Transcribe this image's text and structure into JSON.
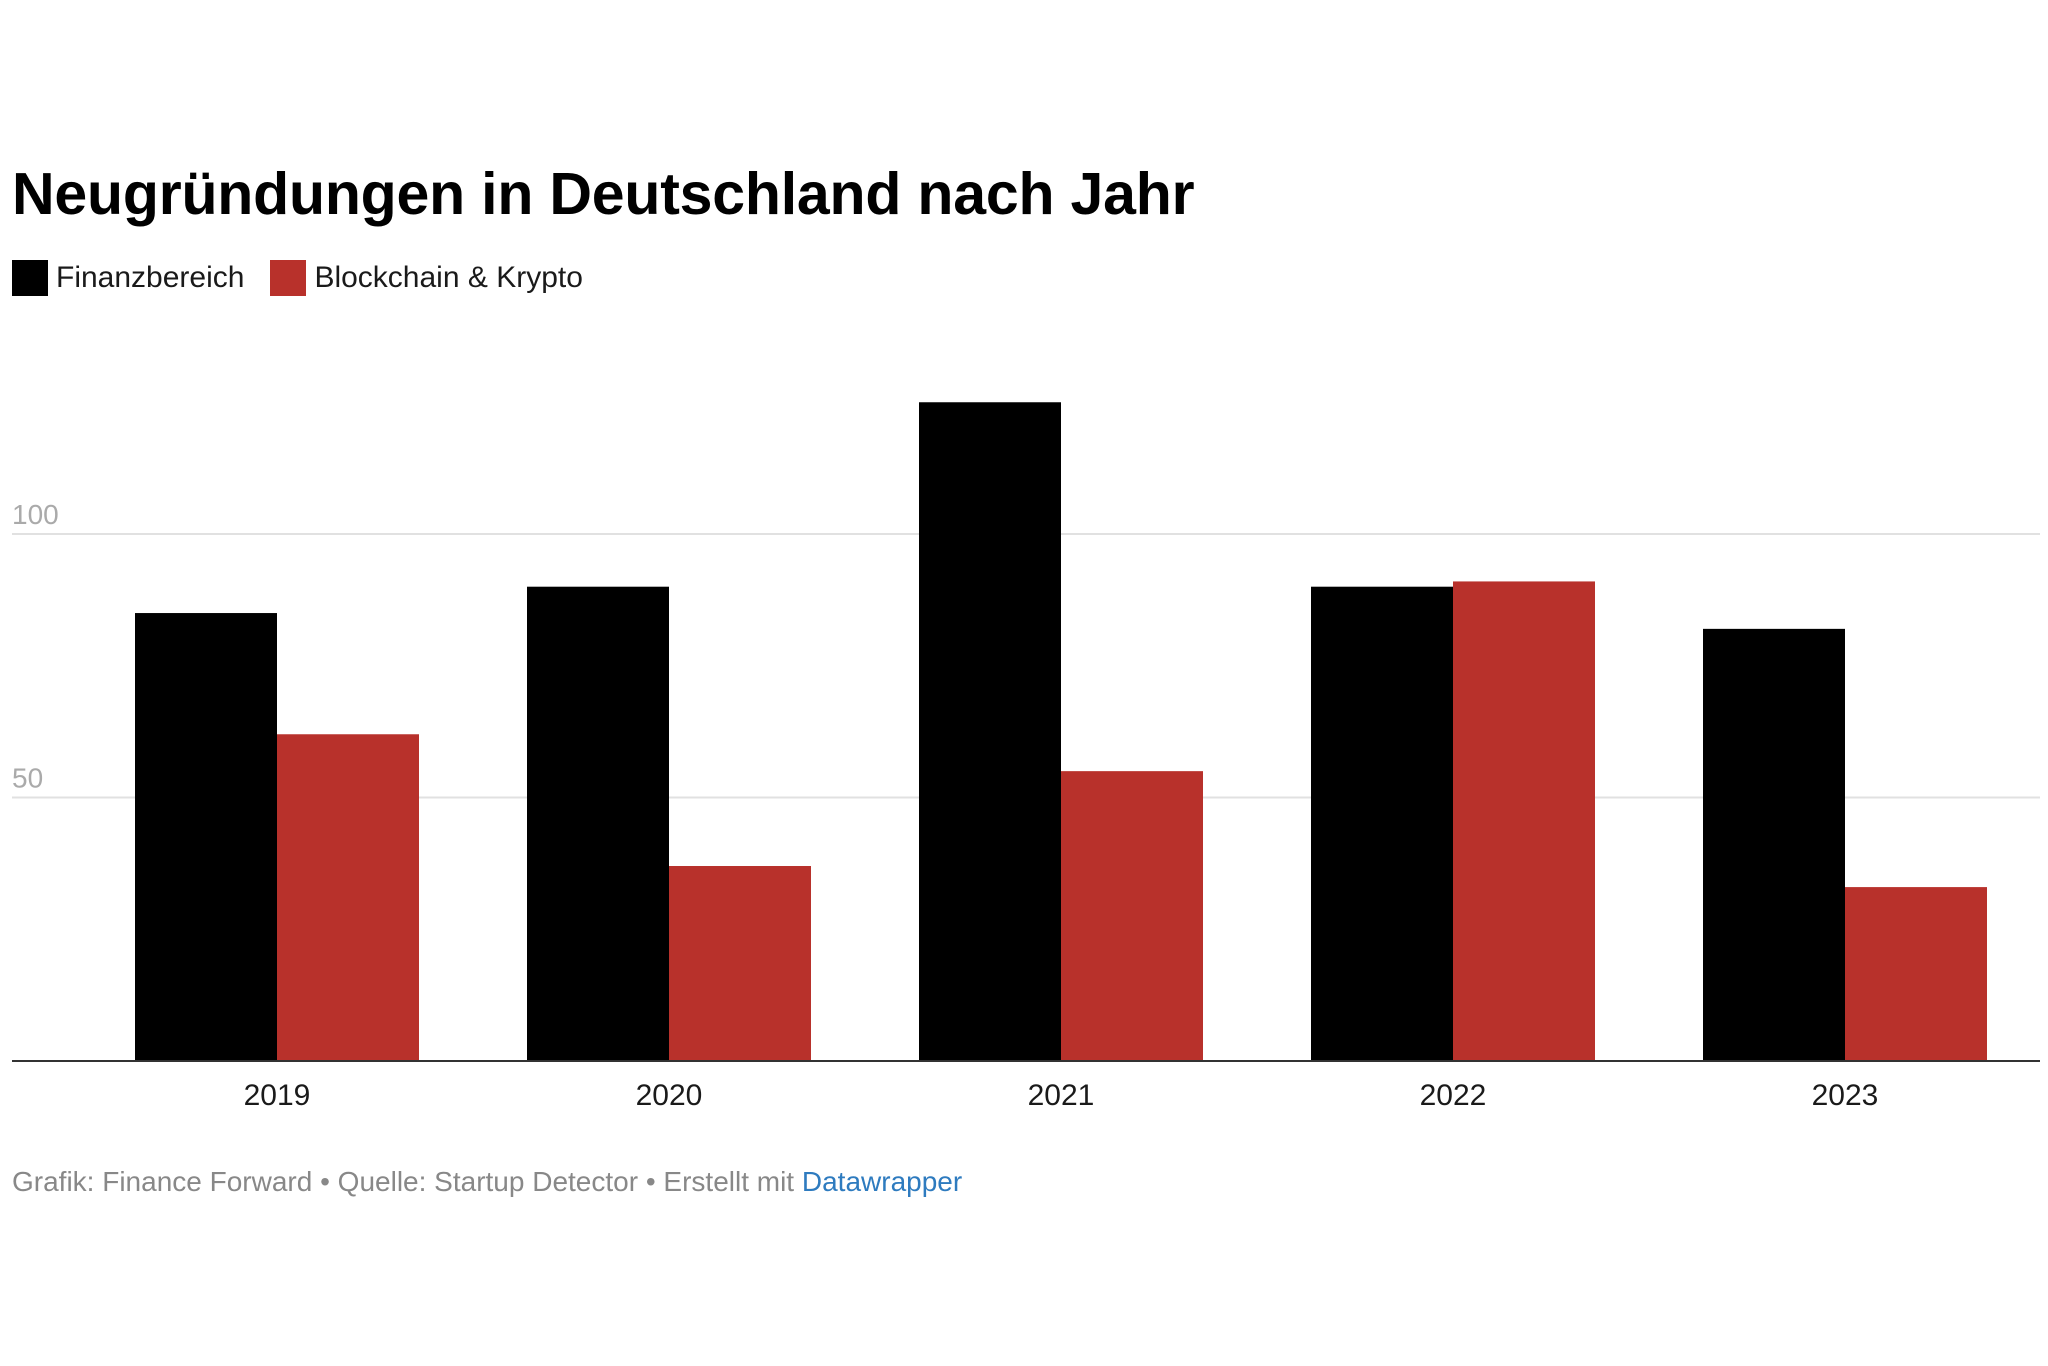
{
  "footer": {
    "text": "Grafik: Finance Forward • Quelle: Startup Detector • Erstellt mit ",
    "link_label": "Datawrapper"
  },
  "colors": {
    "series_1": "#000000",
    "series_2": "#b8312b",
    "grid": "#e1e1e1",
    "axis": "#333333",
    "tick_label": "#aaaaaa",
    "link": "#2e7bbf"
  },
  "chart_data": {
    "type": "bar",
    "title": "Neugründungen in Deutschland nach Jahr",
    "xlabel": "",
    "ylabel": "",
    "categories": [
      "2019",
      "2020",
      "2021",
      "2022",
      "2023"
    ],
    "series": [
      {
        "name": "Finanzbereich",
        "color": "#000000",
        "values": [
          85,
          90,
          125,
          90,
          82
        ]
      },
      {
        "name": "Blockchain & Krypto",
        "color": "#b8312b",
        "values": [
          62,
          37,
          55,
          91,
          33
        ]
      }
    ],
    "ylim": [
      0,
      125
    ],
    "yticks": [
      {
        "value": 50,
        "label": "50"
      },
      {
        "value": 100,
        "label": "100"
      }
    ],
    "grid": true,
    "legend": "top-left"
  }
}
